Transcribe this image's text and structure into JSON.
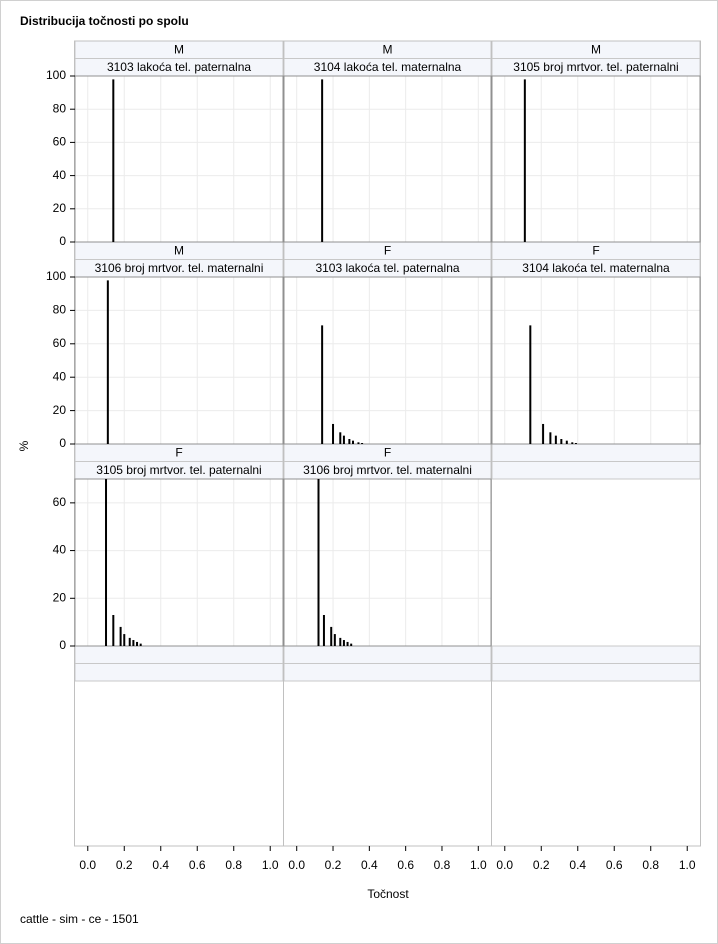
{
  "chart_data": {
    "type": "needle",
    "title": "Distribucija točnosti po spolu",
    "xlabel": "Točnost",
    "ylabel": "%",
    "footnote": "cattle - sim - ce - 1501",
    "xlim": [
      -0.07,
      1.07
    ],
    "xticks": [
      {
        "value": 0,
        "label": "0.0"
      },
      {
        "value": 0.2,
        "label": "0.2"
      },
      {
        "value": 0.4,
        "label": "0.4"
      },
      {
        "value": 0.6,
        "label": "0.6"
      },
      {
        "value": 0.8,
        "label": "0.8"
      },
      {
        "value": 1,
        "label": "1.0"
      }
    ],
    "color": "#000000",
    "grid": true,
    "panels": [
      {
        "group": "M",
        "label": "3103 lakoća tel. paternalna",
        "ylim": [
          0,
          100
        ],
        "yticks": [
          0,
          20,
          40,
          60,
          80,
          100
        ],
        "x": [
          0.14
        ],
        "values": [
          98
        ]
      },
      {
        "group": "M",
        "label": "3104 lakoća tel. maternalna",
        "ylim": [
          0,
          100
        ],
        "yticks": [
          0,
          20,
          40,
          60,
          80,
          100
        ],
        "x": [
          0.14
        ],
        "values": [
          98
        ]
      },
      {
        "group": "M",
        "label": "3105 broj mrtvor. tel. paternalni",
        "ylim": [
          0,
          100
        ],
        "yticks": [
          0,
          20,
          40,
          60,
          80,
          100
        ],
        "x": [
          0.11
        ],
        "values": [
          98
        ]
      },
      {
        "group": "M",
        "label": "3106 broj mrtvor. tel. maternalni",
        "ylim": [
          0,
          100
        ],
        "yticks": [
          0,
          20,
          40,
          60,
          80,
          100
        ],
        "x": [
          0.11
        ],
        "values": [
          98
        ]
      },
      {
        "group": "F",
        "label": "3103 lakoća tel. paternalna",
        "ylim": [
          0,
          100
        ],
        "yticks": [
          0,
          20,
          40,
          60,
          80,
          100
        ],
        "x": [
          0.14,
          0.2,
          0.24,
          0.26,
          0.29,
          0.31,
          0.34,
          0.36
        ],
        "values": [
          71,
          12,
          7,
          5,
          3,
          2,
          1,
          0.6
        ]
      },
      {
        "group": "F",
        "label": "3104 lakoća tel. maternalna",
        "ylim": [
          0,
          100
        ],
        "yticks": [
          0,
          20,
          40,
          60,
          80,
          100
        ],
        "x": [
          0.14,
          0.21,
          0.25,
          0.28,
          0.31,
          0.34,
          0.37,
          0.39
        ],
        "values": [
          71,
          12,
          7,
          5,
          3,
          2,
          1,
          0.6
        ]
      },
      {
        "group": "F",
        "label": "3105 broj mrtvor. tel. paternalni",
        "ylim": [
          0,
          70
        ],
        "yticks": [
          0,
          20,
          40,
          60
        ],
        "x": [
          0.1,
          0.14,
          0.18,
          0.2,
          0.23,
          0.25,
          0.27,
          0.29
        ],
        "values": [
          70,
          13,
          8,
          5,
          3.4,
          2.5,
          1.7,
          1
        ]
      },
      {
        "group": "F",
        "label": "3106 broj mrtvor. tel. maternalni",
        "ylim": [
          0,
          70
        ],
        "yticks": [
          0,
          20,
          40,
          60
        ],
        "x": [
          0.12,
          0.15,
          0.19,
          0.21,
          0.24,
          0.26,
          0.28,
          0.3
        ],
        "values": [
          70,
          13,
          8,
          5,
          3.4,
          2.5,
          1.7,
          1
        ]
      }
    ]
  }
}
